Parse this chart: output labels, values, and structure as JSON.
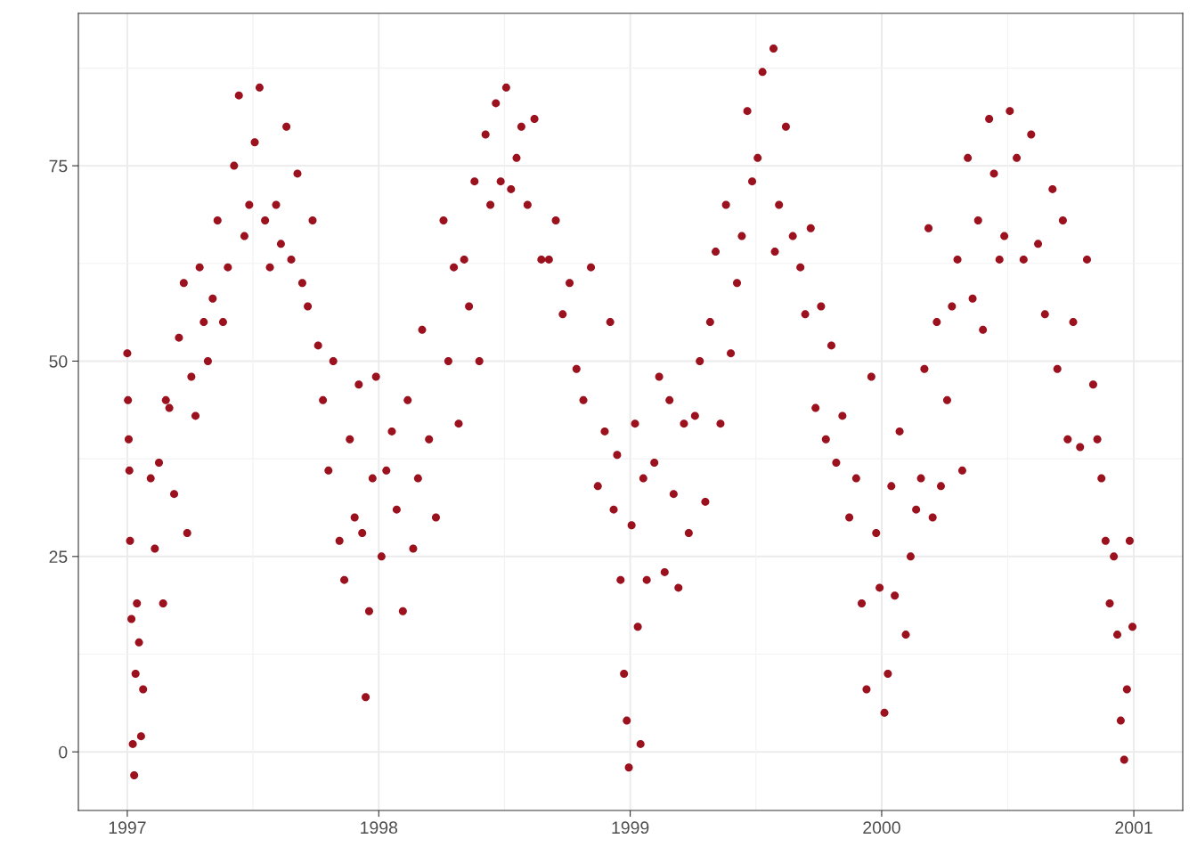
{
  "chart_data": {
    "type": "scatter",
    "color": "#9b111e",
    "marker": "circle",
    "grid": true,
    "xlim": [
      "1996-10-22",
      "2001-03-13"
    ],
    "xticks": [
      {
        "value": "1997-01-01",
        "label": "1997"
      },
      {
        "value": "1998-01-01",
        "label": "1998"
      },
      {
        "value": "1999-01-01",
        "label": "1999"
      },
      {
        "value": "2000-01-01",
        "label": "2000"
      },
      {
        "value": "2001-01-01",
        "label": "2001"
      }
    ],
    "ylim": [
      -7.5,
      94.5
    ],
    "yticks": [
      0,
      25,
      50,
      75
    ],
    "x": [
      "1997-01-01",
      "1997-01-02",
      "1997-01-03",
      "1997-01-04",
      "1997-01-05",
      "1997-01-07",
      "1997-01-09",
      "1997-01-11",
      "1997-01-13",
      "1997-01-15",
      "1997-01-18",
      "1997-01-21",
      "1997-01-24",
      "1997-02-04",
      "1997-02-10",
      "1997-02-16",
      "1997-02-22",
      "1997-02-26",
      "1997-03-03",
      "1997-03-10",
      "1997-03-17",
      "1997-03-24",
      "1997-03-29",
      "1997-04-04",
      "1997-04-10",
      "1997-04-16",
      "1997-04-22",
      "1997-04-28",
      "1997-05-05",
      "1997-05-12",
      "1997-05-20",
      "1997-05-27",
      "1997-06-05",
      "1997-06-12",
      "1997-06-20",
      "1997-06-27",
      "1997-07-05",
      "1997-07-12",
      "1997-07-20",
      "1997-07-27",
      "1997-08-05",
      "1997-08-12",
      "1997-08-20",
      "1997-08-27",
      "1997-09-05",
      "1997-09-12",
      "1997-09-20",
      "1997-09-27",
      "1997-10-05",
      "1997-10-12",
      "1997-10-20",
      "1997-10-27",
      "1997-11-05",
      "1997-11-12",
      "1997-11-20",
      "1997-11-27",
      "1997-12-03",
      "1997-12-08",
      "1997-12-13",
      "1997-12-18",
      "1997-12-23",
      "1997-12-28",
      "1998-01-05",
      "1998-01-12",
      "1998-01-20",
      "1998-01-27",
      "1998-02-05",
      "1998-02-12",
      "1998-02-20",
      "1998-02-27",
      "1998-03-05",
      "1998-03-15",
      "1998-03-25",
      "1998-04-05",
      "1998-04-12",
      "1998-04-20",
      "1998-04-27",
      "1998-05-05",
      "1998-05-12",
      "1998-05-20",
      "1998-05-27",
      "1998-06-05",
      "1998-06-12",
      "1998-06-20",
      "1998-06-27",
      "1998-07-05",
      "1998-07-12",
      "1998-07-20",
      "1998-07-27",
      "1998-08-05",
      "1998-08-15",
      "1998-08-25",
      "1998-09-05",
      "1998-09-15",
      "1998-09-25",
      "1998-10-05",
      "1998-10-15",
      "1998-10-25",
      "1998-11-05",
      "1998-11-15",
      "1998-11-25",
      "1998-12-03",
      "1998-12-08",
      "1998-12-13",
      "1998-12-18",
      "1998-12-23",
      "1998-12-27",
      "1998-12-30",
      "1999-01-03",
      "1999-01-08",
      "1999-01-12",
      "1999-01-16",
      "1999-01-20",
      "1999-01-25",
      "1999-02-05",
      "1999-02-12",
      "1999-02-20",
      "1999-02-27",
      "1999-03-05",
      "1999-03-12",
      "1999-03-20",
      "1999-03-27",
      "1999-04-05",
      "1999-04-12",
      "1999-04-20",
      "1999-04-27",
      "1999-05-05",
      "1999-05-12",
      "1999-05-20",
      "1999-05-27",
      "1999-06-05",
      "1999-06-12",
      "1999-06-20",
      "1999-06-27",
      "1999-07-05",
      "1999-07-12",
      "1999-07-28",
      "1999-07-30",
      "1999-08-05",
      "1999-08-15",
      "1999-08-25",
      "1999-09-05",
      "1999-09-12",
      "1999-09-20",
      "1999-09-27",
      "1999-10-05",
      "1999-10-12",
      "1999-10-20",
      "1999-10-27",
      "1999-11-05",
      "1999-11-15",
      "1999-11-25",
      "1999-12-03",
      "1999-12-10",
      "1999-12-17",
      "1999-12-24",
      "1999-12-29",
      "2000-01-05",
      "2000-01-10",
      "2000-01-15",
      "2000-01-20",
      "2000-01-27",
      "2000-02-05",
      "2000-02-12",
      "2000-02-20",
      "2000-02-27",
      "2000-03-03",
      "2000-03-09",
      "2000-03-15",
      "2000-03-21",
      "2000-03-27",
      "2000-04-05",
      "2000-04-12",
      "2000-04-20",
      "2000-04-27",
      "2000-05-05",
      "2000-05-12",
      "2000-05-20",
      "2000-05-27",
      "2000-06-05",
      "2000-06-12",
      "2000-06-20",
      "2000-06-27",
      "2000-07-05",
      "2000-07-15",
      "2000-07-25",
      "2000-08-05",
      "2000-08-15",
      "2000-08-25",
      "2000-09-05",
      "2000-09-12",
      "2000-09-20",
      "2000-09-27",
      "2000-10-05",
      "2000-10-15",
      "2000-10-25",
      "2000-11-03",
      "2000-11-09",
      "2000-11-15",
      "2000-11-21",
      "2000-11-27",
      "2000-12-03",
      "2000-12-08",
      "2000-12-13",
      "2000-12-18",
      "2000-12-22",
      "2000-12-26",
      "2000-12-30"
    ],
    "values": [
      51,
      45,
      40,
      36,
      27,
      17,
      1,
      -3,
      10,
      19,
      14,
      2,
      8,
      35,
      26,
      37,
      19,
      45,
      44,
      33,
      53,
      60,
      28,
      48,
      43,
      62,
      55,
      50,
      58,
      68,
      55,
      62,
      75,
      84,
      66,
      70,
      78,
      85,
      68,
      62,
      70,
      65,
      80,
      63,
      74,
      60,
      57,
      68,
      52,
      45,
      36,
      50,
      27,
      22,
      40,
      30,
      47,
      28,
      7,
      18,
      35,
      48,
      25,
      36,
      41,
      31,
      18,
      45,
      26,
      35,
      54,
      40,
      30,
      68,
      50,
      62,
      42,
      63,
      57,
      73,
      50,
      79,
      70,
      83,
      73,
      85,
      72,
      76,
      80,
      70,
      81,
      63,
      63,
      68,
      56,
      60,
      49,
      45,
      62,
      34,
      41,
      55,
      31,
      38,
      22,
      10,
      4,
      -2,
      29,
      42,
      16,
      1,
      35,
      22,
      37,
      48,
      23,
      45,
      33,
      21,
      42,
      28,
      43,
      50,
      32,
      55,
      64,
      42,
      70,
      51,
      60,
      66,
      82,
      73,
      76,
      87,
      90,
      64,
      70,
      80,
      66,
      62,
      56,
      67,
      44,
      57,
      40,
      52,
      37,
      43,
      30,
      35,
      19,
      8,
      48,
      28,
      21,
      5,
      10,
      34,
      20,
      41,
      15,
      25,
      31,
      35,
      49,
      67,
      30,
      55,
      34,
      45,
      57,
      63,
      36,
      76,
      58,
      68,
      54,
      81,
      74,
      63,
      66,
      82,
      76,
      63,
      79,
      65,
      56,
      72,
      49,
      68,
      40,
      55,
      39,
      63,
      47,
      40,
      35,
      27,
      19,
      25,
      15,
      4,
      -1,
      8,
      27,
      16
    ]
  }
}
